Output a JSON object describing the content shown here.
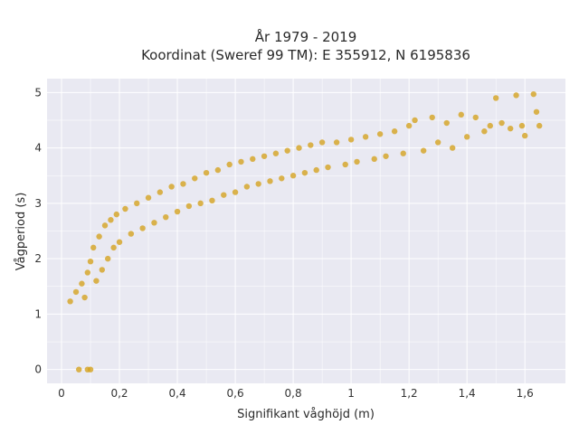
{
  "chart_data": {
    "type": "scatter",
    "title_lines": [
      "År 1979 - 2019",
      "Koordinat (Sweref 99 TM): E 355912, N 6195836"
    ],
    "xlabel": "Signifikant våghöjd (m)",
    "ylabel": "Vågperiod (s)",
    "xlim": [
      -0.05,
      1.74
    ],
    "ylim": [
      -0.25,
      5.25
    ],
    "x_ticks": [
      0,
      0.2,
      0.4,
      0.6,
      0.8,
      1.0,
      1.2,
      1.4,
      1.6
    ],
    "x_tick_labels": [
      "0",
      "0,2",
      "0,4",
      "0,6",
      "0,8",
      "1",
      "1,2",
      "1,4",
      "1,6"
    ],
    "y_ticks": [
      0,
      1,
      2,
      3,
      4,
      5
    ],
    "y_tick_labels": [
      "0",
      "1",
      "2",
      "3",
      "4",
      "5"
    ],
    "grid": true,
    "legend": "none",
    "colors": {
      "marker": "#d4a321",
      "plot_background": "#e9e9f2",
      "grid": "#ffffff"
    },
    "points": [
      {
        "x": 0.06,
        "y": 0.0
      },
      {
        "x": 0.09,
        "y": 0.0
      },
      {
        "x": 0.1,
        "y": 0.0
      },
      {
        "x": 0.03,
        "y": 1.23
      },
      {
        "x": 0.05,
        "y": 1.4
      },
      {
        "x": 0.07,
        "y": 1.55
      },
      {
        "x": 0.08,
        "y": 1.3
      },
      {
        "x": 0.09,
        "y": 1.75
      },
      {
        "x": 0.1,
        "y": 1.95
      },
      {
        "x": 0.11,
        "y": 2.2
      },
      {
        "x": 0.12,
        "y": 1.6
      },
      {
        "x": 0.13,
        "y": 2.4
      },
      {
        "x": 0.14,
        "y": 1.8
      },
      {
        "x": 0.15,
        "y": 2.6
      },
      {
        "x": 0.16,
        "y": 2.0
      },
      {
        "x": 0.17,
        "y": 2.7
      },
      {
        "x": 0.18,
        "y": 2.2
      },
      {
        "x": 0.19,
        "y": 2.8
      },
      {
        "x": 0.2,
        "y": 2.3
      },
      {
        "x": 0.22,
        "y": 2.9
      },
      {
        "x": 0.24,
        "y": 2.45
      },
      {
        "x": 0.26,
        "y": 3.0
      },
      {
        "x": 0.28,
        "y": 2.55
      },
      {
        "x": 0.3,
        "y": 3.1
      },
      {
        "x": 0.32,
        "y": 2.65
      },
      {
        "x": 0.34,
        "y": 3.2
      },
      {
        "x": 0.36,
        "y": 2.75
      },
      {
        "x": 0.38,
        "y": 3.3
      },
      {
        "x": 0.4,
        "y": 2.85
      },
      {
        "x": 0.42,
        "y": 3.35
      },
      {
        "x": 0.44,
        "y": 2.95
      },
      {
        "x": 0.46,
        "y": 3.45
      },
      {
        "x": 0.48,
        "y": 3.0
      },
      {
        "x": 0.5,
        "y": 3.55
      },
      {
        "x": 0.52,
        "y": 3.05
      },
      {
        "x": 0.54,
        "y": 3.6
      },
      {
        "x": 0.56,
        "y": 3.15
      },
      {
        "x": 0.58,
        "y": 3.7
      },
      {
        "x": 0.6,
        "y": 3.2
      },
      {
        "x": 0.62,
        "y": 3.75
      },
      {
        "x": 0.64,
        "y": 3.3
      },
      {
        "x": 0.66,
        "y": 3.8
      },
      {
        "x": 0.68,
        "y": 3.35
      },
      {
        "x": 0.7,
        "y": 3.85
      },
      {
        "x": 0.72,
        "y": 3.4
      },
      {
        "x": 0.74,
        "y": 3.9
      },
      {
        "x": 0.76,
        "y": 3.45
      },
      {
        "x": 0.78,
        "y": 3.95
      },
      {
        "x": 0.8,
        "y": 3.5
      },
      {
        "x": 0.82,
        "y": 4.0
      },
      {
        "x": 0.84,
        "y": 3.55
      },
      {
        "x": 0.86,
        "y": 4.05
      },
      {
        "x": 0.88,
        "y": 3.6
      },
      {
        "x": 0.9,
        "y": 4.1
      },
      {
        "x": 0.92,
        "y": 3.65
      },
      {
        "x": 0.95,
        "y": 4.1
      },
      {
        "x": 0.98,
        "y": 3.7
      },
      {
        "x": 1.0,
        "y": 4.15
      },
      {
        "x": 1.02,
        "y": 3.75
      },
      {
        "x": 1.05,
        "y": 4.2
      },
      {
        "x": 1.08,
        "y": 3.8
      },
      {
        "x": 1.1,
        "y": 4.25
      },
      {
        "x": 1.12,
        "y": 3.85
      },
      {
        "x": 1.15,
        "y": 4.3
      },
      {
        "x": 1.18,
        "y": 3.9
      },
      {
        "x": 1.2,
        "y": 4.4
      },
      {
        "x": 1.22,
        "y": 4.5
      },
      {
        "x": 1.25,
        "y": 3.95
      },
      {
        "x": 1.28,
        "y": 4.55
      },
      {
        "x": 1.3,
        "y": 4.1
      },
      {
        "x": 1.33,
        "y": 4.45
      },
      {
        "x": 1.35,
        "y": 4.0
      },
      {
        "x": 1.38,
        "y": 4.6
      },
      {
        "x": 1.4,
        "y": 4.2
      },
      {
        "x": 1.43,
        "y": 4.55
      },
      {
        "x": 1.46,
        "y": 4.3
      },
      {
        "x": 1.48,
        "y": 4.4
      },
      {
        "x": 1.5,
        "y": 4.9
      },
      {
        "x": 1.52,
        "y": 4.45
      },
      {
        "x": 1.55,
        "y": 4.35
      },
      {
        "x": 1.57,
        "y": 4.95
      },
      {
        "x": 1.59,
        "y": 4.4
      },
      {
        "x": 1.6,
        "y": 4.22
      },
      {
        "x": 1.63,
        "y": 4.97
      },
      {
        "x": 1.64,
        "y": 4.65
      },
      {
        "x": 1.65,
        "y": 4.4
      }
    ]
  }
}
